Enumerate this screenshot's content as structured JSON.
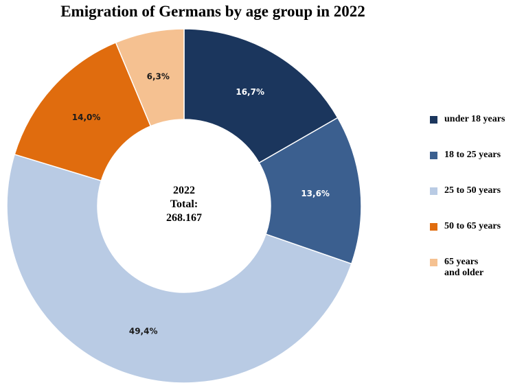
{
  "chart_data": {
    "type": "pie",
    "title": "Emigration of Germans by age group in 2022",
    "center_label": [
      "2022",
      "Total:",
      "268.167"
    ],
    "legend_position": "right",
    "categories": [
      "under 18 years",
      "18 to 25 years",
      "25 to 50 years",
      "50 to 65 years",
      "65 years and older"
    ],
    "values": [
      16.7,
      13.6,
      49.4,
      14.0,
      6.3
    ],
    "data_labels": [
      "16,7%",
      "13,6%",
      "49,4%",
      "14,0%",
      "6,3%"
    ],
    "colors": [
      "#1b365d",
      "#3b5f8f",
      "#b9cbe4",
      "#e06c0e",
      "#f5c191"
    ],
    "label_colors": [
      "#ffffff",
      "#ffffff",
      "#1a1a1a",
      "#1a1a1a",
      "#1a1a1a"
    ],
    "legend": [
      {
        "lines": [
          "under 18 years"
        ],
        "color": "#1b365d"
      },
      {
        "lines": [
          "18 to 25 years"
        ],
        "color": "#3b5f8f"
      },
      {
        "lines": [
          "25 to 50 years"
        ],
        "color": "#b9cbe4"
      },
      {
        "lines": [
          "50 to 65 years"
        ],
        "color": "#e06c0e"
      },
      {
        "lines": [
          "65 years",
          "and older"
        ],
        "color": "#f5c191"
      }
    ]
  }
}
